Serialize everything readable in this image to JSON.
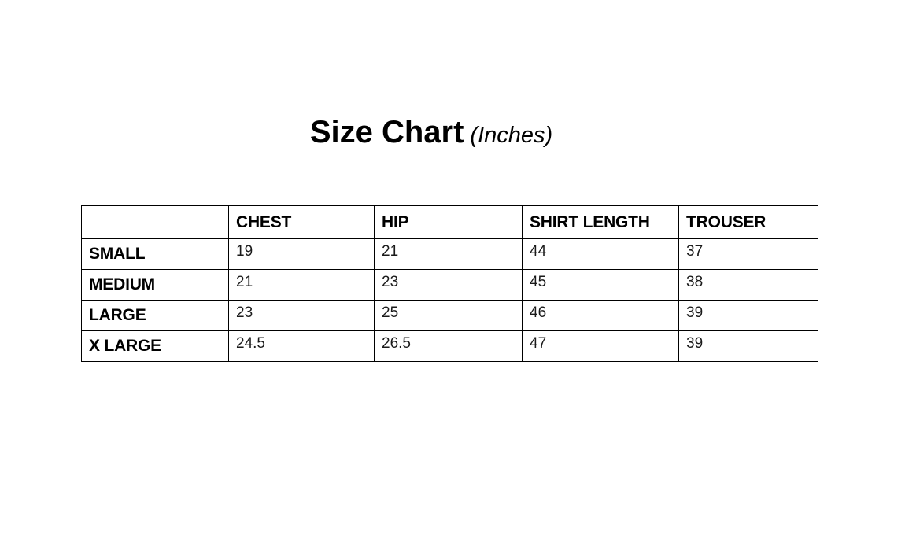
{
  "title": {
    "main": "Size Chart",
    "suffix": "(Inches)"
  },
  "table": {
    "columns": [
      "",
      "CHEST",
      "HIP",
      "SHIRT LENGTH",
      "TROUSER"
    ],
    "rows": [
      {
        "label": "SMALL",
        "values": [
          "19",
          "21",
          "44",
          "37"
        ]
      },
      {
        "label": "MEDIUM",
        "values": [
          "21",
          "23",
          "45",
          "38"
        ]
      },
      {
        "label": "LARGE",
        "values": [
          "23",
          "25",
          "46",
          "39"
        ]
      },
      {
        "label": "X LARGE",
        "values": [
          "24.5",
          "26.5",
          "47",
          "39"
        ]
      }
    ]
  },
  "colors": {
    "text": "#000000",
    "border": "#000000",
    "background": "#ffffff"
  },
  "chart_data": {
    "type": "table",
    "title": "Size Chart (Inches)",
    "unit": "Inches",
    "columns": [
      "CHEST",
      "HIP",
      "SHIRT LENGTH",
      "TROUSER"
    ],
    "row_labels": [
      "SMALL",
      "MEDIUM",
      "LARGE",
      "X LARGE"
    ],
    "rows": [
      {
        "size": "SMALL",
        "chest": 19,
        "hip": 21,
        "shirt_length": 44,
        "trouser": 37
      },
      {
        "size": "MEDIUM",
        "chest": 21,
        "hip": 23,
        "shirt_length": 45,
        "trouser": 38
      },
      {
        "size": "LARGE",
        "chest": 23,
        "hip": 25,
        "shirt_length": 46,
        "trouser": 39
      },
      {
        "size": "X LARGE",
        "chest": 24.5,
        "hip": 26.5,
        "shirt_length": 47,
        "trouser": 39
      }
    ]
  }
}
